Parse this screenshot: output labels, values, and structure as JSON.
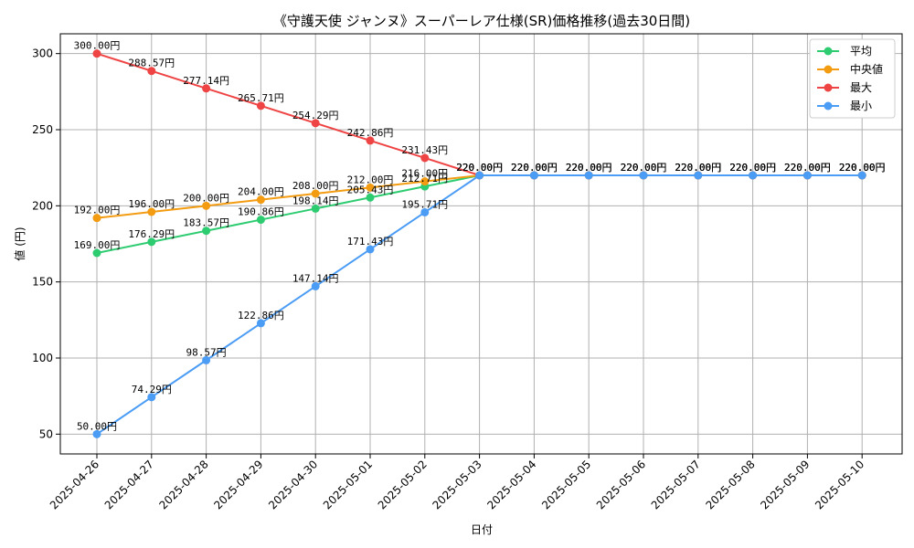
{
  "chart_data": {
    "type": "line",
    "title": "《守護天使 ジャンヌ》スーパーレア仕様(SR)価格推移(過去30日間)",
    "xlabel": "日付",
    "ylabel": "値 (円)",
    "ylim": [
      37,
      313
    ],
    "yticks": [
      50,
      100,
      150,
      200,
      250,
      300
    ],
    "grid": true,
    "legend_position": "top-right",
    "label_suffix": "円",
    "categories": [
      "2025-04-26",
      "2025-04-27",
      "2025-04-28",
      "2025-04-29",
      "2025-04-30",
      "2025-05-01",
      "2025-05-02",
      "2025-05-03",
      "2025-05-04",
      "2025-05-05",
      "2025-05-06",
      "2025-05-07",
      "2025-05-08",
      "2025-05-09",
      "2025-05-10"
    ],
    "series": [
      {
        "name": "平均",
        "color": "#2ecc71",
        "values": [
          169.0,
          176.29,
          183.57,
          190.86,
          198.14,
          205.43,
          212.71,
          220.0,
          220.0,
          220.0,
          220.0,
          220.0,
          220.0,
          220.0,
          220.0
        ]
      },
      {
        "name": "中央値",
        "color": "#f39c12",
        "values": [
          192.0,
          196.0,
          200.0,
          204.0,
          208.0,
          212.0,
          216.0,
          220.0,
          220.0,
          220.0,
          220.0,
          220.0,
          220.0,
          220.0,
          220.0
        ]
      },
      {
        "name": "最大",
        "color": "#ef4444",
        "values": [
          300.0,
          288.57,
          277.14,
          265.71,
          254.29,
          242.86,
          231.43,
          220.0,
          220.0,
          220.0,
          220.0,
          220.0,
          220.0,
          220.0,
          220.0
        ]
      },
      {
        "name": "最小",
        "color": "#4b9cf5",
        "values": [
          50.0,
          74.29,
          98.57,
          122.86,
          147.14,
          171.43,
          195.71,
          220.0,
          220.0,
          220.0,
          220.0,
          220.0,
          220.0,
          220.0,
          220.0
        ]
      }
    ]
  }
}
